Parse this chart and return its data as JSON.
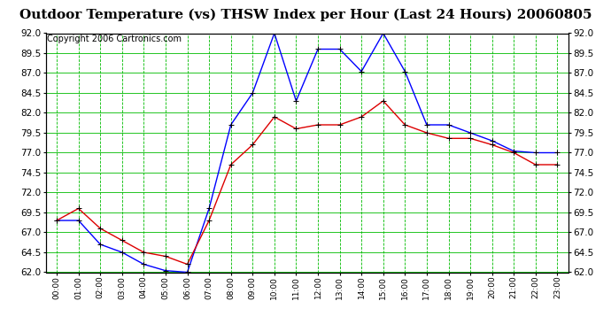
{
  "title": "Outdoor Temperature (vs) THSW Index per Hour (Last 24 Hours) 20060805",
  "copyright": "Copyright 2006 Cartronics.com",
  "hours": [
    "00:00",
    "01:00",
    "02:00",
    "03:00",
    "04:00",
    "05:00",
    "06:00",
    "07:00",
    "08:00",
    "09:00",
    "10:00",
    "11:00",
    "12:00",
    "13:00",
    "14:00",
    "15:00",
    "16:00",
    "17:00",
    "18:00",
    "19:00",
    "20:00",
    "21:00",
    "22:00",
    "23:00"
  ],
  "blue_data": [
    68.5,
    68.5,
    65.5,
    64.5,
    63.0,
    62.2,
    62.0,
    70.0,
    80.5,
    84.5,
    92.0,
    83.5,
    90.0,
    90.0,
    87.2,
    92.0,
    87.2,
    80.5,
    80.5,
    79.5,
    78.5,
    77.2,
    77.0,
    77.0
  ],
  "red_data": [
    68.5,
    70.0,
    67.5,
    66.0,
    64.5,
    64.0,
    63.0,
    68.5,
    75.5,
    78.0,
    81.5,
    80.0,
    80.5,
    80.5,
    81.5,
    83.5,
    80.5,
    79.5,
    78.8,
    78.8,
    78.0,
    77.0,
    75.5,
    75.5
  ],
  "ylim": [
    62.0,
    92.0
  ],
  "yticks": [
    62.0,
    64.5,
    67.0,
    69.5,
    72.0,
    74.5,
    77.0,
    79.5,
    82.0,
    84.5,
    87.0,
    89.5,
    92.0
  ],
  "blue_color": "#0000FF",
  "red_color": "#DD0000",
  "bg_color": "#FFFFFF",
  "grid_y_color": "#00BB00",
  "grid_x_color": "#00BB00",
  "title_fontsize": 11,
  "copyright_fontsize": 7,
  "tick_fontsize": 7.5,
  "xtick_fontsize": 6.5
}
